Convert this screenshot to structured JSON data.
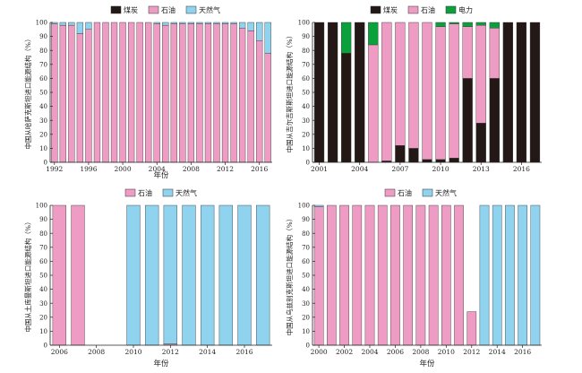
{
  "chart_data": [
    {
      "type": "bar",
      "stacked": true,
      "ylabel": "中国从哈萨克斯坦进口能源结构（%）",
      "xlabel": "年份",
      "ylim": [
        0,
        100
      ],
      "yticks": [
        0,
        10,
        20,
        30,
        40,
        50,
        60,
        70,
        80,
        90,
        100
      ],
      "xticklabels": [
        "1992",
        "1996",
        "2000",
        "2004",
        "2008",
        "2012",
        "2016"
      ],
      "categories": [
        "1992",
        "1993",
        "1994",
        "1995",
        "1996",
        "1997",
        "1998",
        "1999",
        "2000",
        "2001",
        "2002",
        "2003",
        "2004",
        "2005",
        "2006",
        "2007",
        "2008",
        "2009",
        "2010",
        "2011",
        "2012",
        "2013",
        "2014",
        "2015",
        "2016",
        "2017"
      ],
      "legend": [
        "煤炭",
        "石油",
        "天然气"
      ],
      "series": [
        {
          "name": "煤炭",
          "color": "#231815",
          "values": [
            0,
            0,
            0,
            0,
            0,
            0,
            0,
            0,
            0,
            0,
            0,
            0,
            0,
            0,
            0,
            0,
            0,
            0,
            0,
            0,
            0,
            0,
            0,
            0,
            0,
            0
          ]
        },
        {
          "name": "石油",
          "color": "#ee9cc4",
          "values": [
            99,
            98,
            98,
            92,
            95,
            100,
            100,
            100,
            100,
            100,
            100,
            100,
            99,
            98,
            99,
            99,
            99,
            99,
            99,
            99,
            99,
            99,
            96,
            94,
            87,
            78
          ]
        },
        {
          "name": "天然气",
          "color": "#8fd3ef",
          "values": [
            1,
            2,
            2,
            8,
            5,
            0,
            0,
            0,
            0,
            0,
            0,
            0,
            1,
            2,
            1,
            1,
            1,
            1,
            1,
            1,
            1,
            1,
            4,
            6,
            13,
            22
          ]
        }
      ]
    },
    {
      "type": "bar",
      "stacked": true,
      "ylabel": "中国从吉尔吉斯斯坦进口能源结构（%）",
      "xlabel": "",
      "ylim": [
        0,
        100
      ],
      "yticks": [
        0,
        10,
        20,
        30,
        40,
        50,
        60,
        70,
        80,
        90,
        100
      ],
      "xticklabels": [
        "2001",
        "2004",
        "2007",
        "2010",
        "2013",
        "2016"
      ],
      "categories": [
        "2001",
        "2002",
        "2003",
        "2004",
        "2005",
        "2006",
        "2007",
        "2008",
        "2009",
        "2010",
        "2011",
        "2012",
        "2013",
        "2014",
        "2015",
        "2016",
        "2017"
      ],
      "legend": [
        "煤炭",
        "石油",
        "电力"
      ],
      "series": [
        {
          "name": "煤炭",
          "color": "#231815",
          "values": [
            100,
            100,
            78,
            100,
            0,
            1,
            12,
            10,
            2,
            2,
            3,
            60,
            28,
            60,
            100,
            100,
            100
          ]
        },
        {
          "name": "石油",
          "color": "#ee9cc4",
          "values": [
            0,
            0,
            0,
            0,
            84,
            99,
            88,
            90,
            98,
            95,
            96,
            37,
            70,
            36,
            0,
            0,
            0
          ]
        },
        {
          "name": "电力",
          "color": "#0aa13c",
          "values": [
            0,
            0,
            22,
            0,
            16,
            0,
            0,
            0,
            0,
            3,
            1,
            3,
            2,
            4,
            0,
            0,
            0
          ]
        }
      ]
    },
    {
      "type": "bar",
      "stacked": true,
      "ylabel": "中国从土库曼斯坦进口能源结构（%）",
      "xlabel": "年份",
      "ylim": [
        0,
        100
      ],
      "yticks": [
        0,
        10,
        20,
        30,
        40,
        50,
        60,
        70,
        80,
        90,
        100
      ],
      "xticklabels": [
        "2006",
        "2008",
        "2010",
        "2012",
        "2014",
        "2016"
      ],
      "categories": [
        "2006",
        "2007",
        "2008",
        "2009",
        "2010",
        "2011",
        "2012",
        "2013",
        "2014",
        "2015",
        "2016",
        "2017"
      ],
      "legend": [
        "石油",
        "天然气"
      ],
      "series": [
        {
          "name": "石油",
          "color": "#ee9cc4",
          "values": [
            100,
            100,
            0,
            0,
            0,
            0,
            1,
            0,
            0,
            0,
            0,
            0
          ]
        },
        {
          "name": "天然气",
          "color": "#8fd3ef",
          "values": [
            0,
            0,
            0,
            0,
            100,
            100,
            99,
            100,
            100,
            100,
            100,
            100
          ]
        }
      ]
    },
    {
      "type": "bar",
      "stacked": true,
      "ylabel": "中国从乌兹别克斯坦进口能源结构（%）",
      "xlabel": "年份",
      "ylim": [
        0,
        100
      ],
      "yticks": [
        0,
        10,
        20,
        30,
        40,
        50,
        60,
        70,
        80,
        90,
        100
      ],
      "xticklabels": [
        "2000",
        "2002",
        "2004",
        "2006",
        "2008",
        "2010",
        "2012",
        "2014",
        "2016"
      ],
      "categories": [
        "2000",
        "2001",
        "2002",
        "2003",
        "2004",
        "2005",
        "2006",
        "2007",
        "2008",
        "2009",
        "2010",
        "2011",
        "2012",
        "2013",
        "2014",
        "2015",
        "2016",
        "2017"
      ],
      "legend": [
        "石油",
        "天然气"
      ],
      "series": [
        {
          "name": "石油",
          "color": "#ee9cc4",
          "values": [
            99,
            100,
            100,
            100,
            100,
            100,
            100,
            100,
            100,
            100,
            100,
            100,
            24,
            0,
            0,
            0,
            0,
            0
          ]
        },
        {
          "name": "天然气",
          "color": "#8fd3ef",
          "values": [
            1,
            0,
            0,
            0,
            0,
            0,
            0,
            0,
            0,
            0,
            0,
            0,
            0,
            100,
            100,
            100,
            100,
            100
          ]
        }
      ]
    }
  ]
}
